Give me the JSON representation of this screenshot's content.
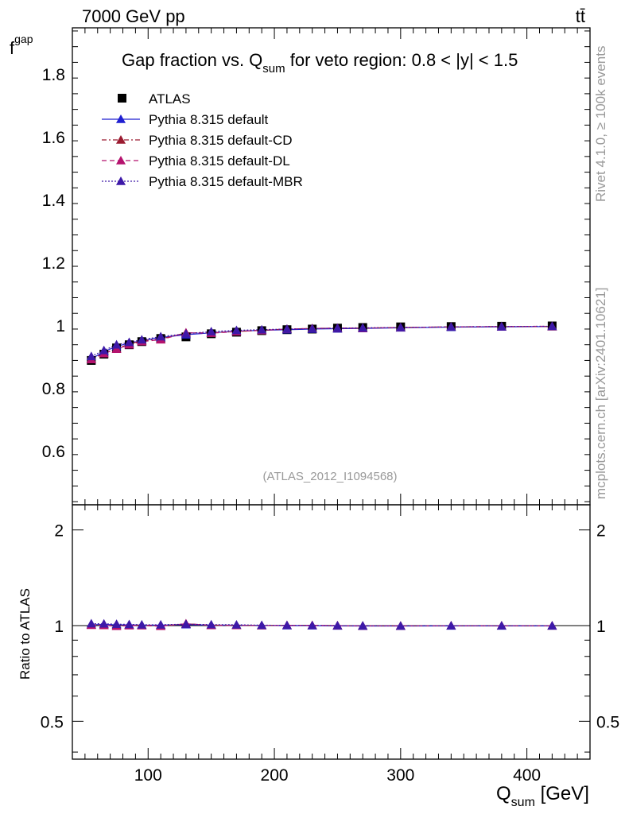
{
  "header": {
    "energy_label": "7000 GeV pp",
    "process_label": "tt̄"
  },
  "side_labels": {
    "rivet": "Rivet 4.1.0, ≥ 100k events",
    "mcplots": "mcplots.cern.ch [arXiv:2401.10621]"
  },
  "analysis_label": "(ATLAS_2012_I1094568)",
  "chart_data": {
    "type": "line",
    "title_main": "Gap fraction vs. Q",
    "title_sub": "sum",
    "title_rest": " for veto region: 0.8 < |y| < 1.5",
    "ylabel_main": "f",
    "ylabel_sub": "gap",
    "ratio_ylabel": "Ratio to ATLAS",
    "xlabel_main": "Q",
    "xlabel_sub": "sum",
    "xlabel_rest": " [GeV]",
    "xlim": [
      40,
      450
    ],
    "ylim": [
      0.43,
      1.95
    ],
    "ratio_ylim": [
      0.38,
      2.4
    ],
    "x_ticks": [
      100,
      200,
      300,
      400
    ],
    "x_tick_labels": [
      "100",
      "200",
      "300",
      "400"
    ],
    "y_ticks": [
      0.6,
      0.8,
      1.0,
      1.2,
      1.4,
      1.6,
      1.8
    ],
    "y_tick_labels": [
      "0.6",
      "0.8",
      "1",
      "1.2",
      "1.4",
      "1.6",
      "1.8"
    ],
    "ratio_ticks": [
      0.5,
      1,
      2
    ],
    "ratio_tick_labels": [
      "0.5",
      "1",
      "2"
    ],
    "x": [
      55,
      65,
      75,
      85,
      95,
      110,
      130,
      150,
      170,
      190,
      210,
      230,
      250,
      270,
      300,
      340,
      380,
      420
    ],
    "data": {
      "name": "ATLAS",
      "values": [
        0.89,
        0.91,
        0.93,
        0.94,
        0.95,
        0.96,
        0.965,
        0.975,
        0.98,
        0.985,
        0.988,
        0.99,
        0.993,
        0.995,
        0.997,
        0.998,
        0.999,
        1.0
      ],
      "color": "#000000"
    },
    "series": [
      {
        "name": "Pythia 8.315 default",
        "style": "solid",
        "color": "#1f1fd1",
        "values": [
          0.895,
          0.918,
          0.935,
          0.945,
          0.953,
          0.963,
          0.972,
          0.978,
          0.983,
          0.986,
          0.988,
          0.99,
          0.991,
          0.992,
          0.994,
          0.996,
          0.997,
          0.998
        ]
      },
      {
        "name": "Pythia 8.315 default-CD",
        "style": "dashdot",
        "color": "#9b1b30",
        "values": [
          0.895,
          0.912,
          0.928,
          0.942,
          0.953,
          0.958,
          0.978,
          0.978,
          0.982,
          0.986,
          0.99,
          0.992,
          0.993,
          0.993,
          0.995,
          0.997,
          0.998,
          0.998
        ]
      },
      {
        "name": "Pythia 8.315 default-DL",
        "style": "dashed",
        "color": "#b5126e",
        "values": [
          0.893,
          0.912,
          0.926,
          0.94,
          0.95,
          0.956,
          0.978,
          0.977,
          0.982,
          0.986,
          0.99,
          0.992,
          0.993,
          0.993,
          0.995,
          0.997,
          0.998,
          0.999
        ]
      },
      {
        "name": "Pythia 8.315 default-MBR",
        "style": "dotted",
        "color": "#3d19a8",
        "values": [
          0.903,
          0.922,
          0.94,
          0.948,
          0.956,
          0.966,
          0.975,
          0.982,
          0.986,
          0.988,
          0.99,
          0.991,
          0.993,
          0.994,
          0.995,
          0.997,
          0.998,
          0.999
        ]
      }
    ]
  }
}
